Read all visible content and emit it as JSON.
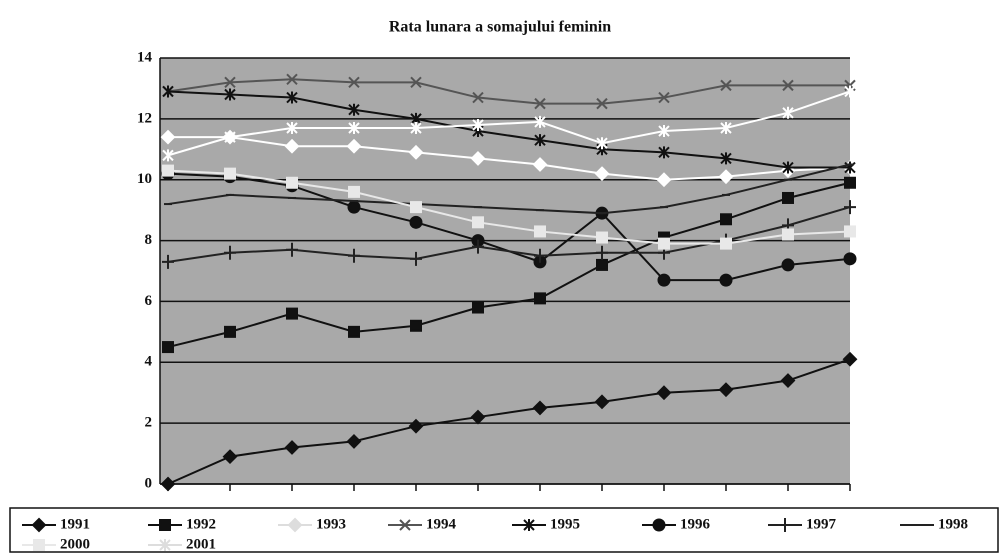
{
  "chart_data": {
    "type": "line",
    "title": "Rata lunara a somajului feminin",
    "categories": [
      null,
      null,
      null,
      null,
      null,
      null,
      null,
      null,
      null,
      null,
      null,
      null
    ],
    "ylim": [
      0,
      14
    ],
    "yticks": [
      0,
      2,
      4,
      6,
      8,
      10,
      12,
      14
    ],
    "grid": true,
    "series": [
      {
        "name": "1991",
        "color": "#111111",
        "marker": "diamond",
        "values": [
          0,
          0.9,
          1.2,
          1.4,
          1.9,
          2.2,
          2.5,
          2.7,
          3.0,
          3.1,
          3.4,
          4.1
        ]
      },
      {
        "name": "1992",
        "color": "#111111",
        "marker": "square",
        "values": [
          4.5,
          5.0,
          5.6,
          5.0,
          5.2,
          5.8,
          6.1,
          7.2,
          8.1,
          8.7,
          9.4,
          9.9
        ]
      },
      {
        "name": "1993",
        "color": "#ffffff",
        "marker": "diamond",
        "values": [
          11.4,
          11.4,
          11.1,
          11.1,
          10.9,
          10.7,
          10.5,
          10.2,
          10.0,
          10.1,
          10.3,
          10.4
        ]
      },
      {
        "name": "1994",
        "color": "#555555",
        "marker": "x",
        "values": [
          12.9,
          13.2,
          13.3,
          13.2,
          13.2,
          12.7,
          12.5,
          12.5,
          12.7,
          13.1,
          13.1,
          13.1
        ]
      },
      {
        "name": "1995",
        "color": "#111111",
        "marker": "star",
        "values": [
          12.9,
          12.8,
          12.7,
          12.3,
          12.0,
          11.6,
          11.3,
          11.0,
          10.9,
          10.7,
          10.4,
          10.4
        ]
      },
      {
        "name": "1996",
        "color": "#111111",
        "marker": "circle",
        "values": [
          10.2,
          10.1,
          9.8,
          9.1,
          8.6,
          8.0,
          7.3,
          8.9,
          6.7,
          6.7,
          7.2,
          7.4
        ]
      },
      {
        "name": "1997",
        "color": "#222222",
        "marker": "plus",
        "values": [
          7.3,
          7.6,
          7.7,
          7.5,
          7.4,
          7.8,
          7.5,
          7.6,
          7.6,
          8.0,
          8.5,
          9.1
        ]
      },
      {
        "name": "1998",
        "color": "#222222",
        "marker": "dash",
        "values": [
          9.2,
          9.5,
          9.4,
          9.3,
          9.2,
          9.1,
          9.0,
          8.9,
          9.1,
          9.5,
          10.0,
          10.5
        ]
      },
      {
        "name": "2000",
        "color": "#e8e8e8",
        "marker": "square",
        "values": [
          10.3,
          10.2,
          9.9,
          9.6,
          9.1,
          8.6,
          8.3,
          8.1,
          7.9,
          7.9,
          8.2,
          8.3
        ]
      },
      {
        "name": "2001",
        "color": "#ffffff",
        "marker": "star",
        "values": [
          10.8,
          11.4,
          11.7,
          11.7,
          11.7,
          11.8,
          11.9,
          11.2,
          11.6,
          11.7,
          12.2,
          12.9
        ]
      }
    ]
  }
}
